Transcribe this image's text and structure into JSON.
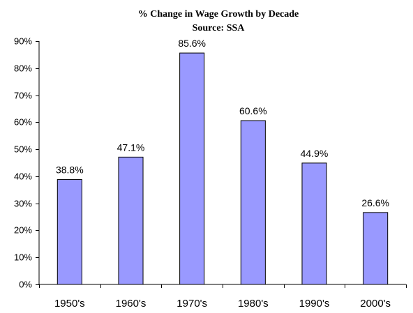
{
  "chart_data": {
    "type": "bar",
    "title": "% Change in Wage Growth by Decade",
    "subtitle": "Source:  SSA",
    "categories": [
      "1950's",
      "1960's",
      "1970's",
      "1980's",
      "1990's",
      "2000's"
    ],
    "values": [
      38.8,
      47.1,
      85.6,
      60.6,
      44.9,
      26.6
    ],
    "data_labels": [
      "38.8%",
      "47.1%",
      "85.6%",
      "60.6%",
      "44.9%",
      "26.6%"
    ],
    "y_ticks": [
      "0%",
      "10%",
      "20%",
      "30%",
      "40%",
      "50%",
      "60%",
      "70%",
      "80%",
      "90%"
    ],
    "ylim": [
      0,
      90
    ],
    "xlabel": "",
    "ylabel": "",
    "grid": false,
    "legend": "none",
    "bar_color": "#9999ff",
    "bar_edge_color": "#000000"
  }
}
